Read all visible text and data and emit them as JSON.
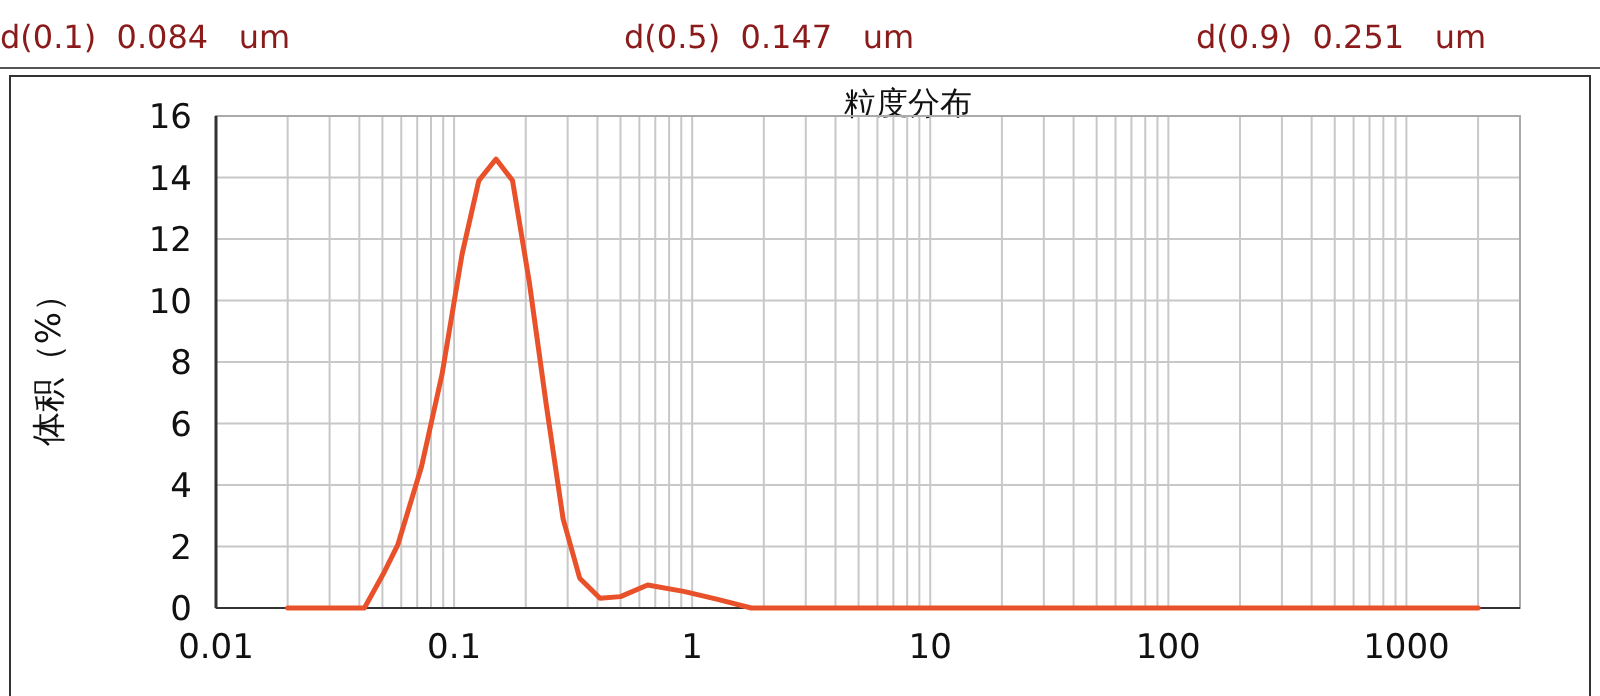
{
  "chart_data": {
    "type": "line",
    "title": "粒度分布",
    "ylabel": "体积（%）",
    "annotations": [
      "d(0.1)  0.084   um",
      "d(0.5)  0.147   um",
      "d(0.9)  0.251   um"
    ],
    "x": [
      0.02,
      0.042,
      0.051,
      0.058,
      0.073,
      0.089,
      0.108,
      0.127,
      0.15,
      0.176,
      0.207,
      0.244,
      0.287,
      0.337,
      0.41,
      0.5,
      0.65,
      0.92,
      1.28,
      1.77,
      2000
    ],
    "values": [
      0,
      0,
      1.18,
      2.05,
      4.6,
      7.6,
      11.5,
      13.9,
      14.6,
      13.9,
      10.6,
      6.6,
      2.9,
      0.97,
      0.32,
      0.37,
      0.75,
      0.54,
      0.28,
      0,
      0
    ],
    "color": "#e8512a",
    "log": "x",
    "grid": true,
    "marker": "none",
    "line_style": "solid",
    "xlim": [
      0.01,
      3000
    ],
    "xticks": [
      0.01,
      0.1,
      1,
      10,
      100,
      1000
    ],
    "ylim": [
      0,
      16
    ],
    "yticks": [
      0,
      2,
      4,
      6,
      8,
      10,
      12,
      14,
      16
    ]
  }
}
